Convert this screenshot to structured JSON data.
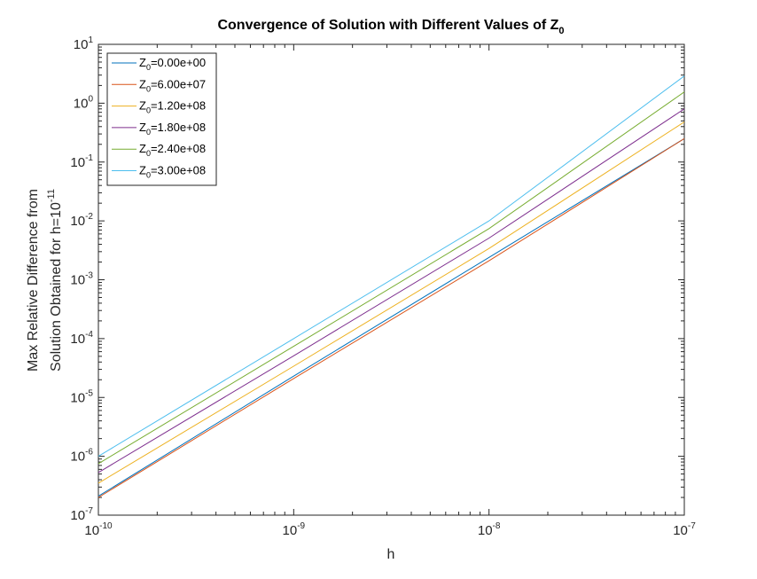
{
  "chart_data": {
    "type": "line",
    "title": {
      "main": "Convergence of Solution with Different Values of Z",
      "sub": "0"
    },
    "xlabel": "h",
    "ylabel": {
      "line1": "Max Relative Difference from",
      "line2": "Solution Obtained for h=10",
      "line2_sup": "-11"
    },
    "xscale": "log",
    "yscale": "log",
    "xlim": [
      1e-10,
      1e-07
    ],
    "ylim": [
      1e-07,
      10
    ],
    "grid": false,
    "legend_position": "top-left",
    "x_ticks": [
      {
        "base": "10",
        "exp": "-10"
      },
      {
        "base": "10",
        "exp": "-9"
      },
      {
        "base": "10",
        "exp": "-8"
      },
      {
        "base": "10",
        "exp": "-7"
      }
    ],
    "y_ticks": [
      {
        "base": "10",
        "exp": "-7"
      },
      {
        "base": "10",
        "exp": "-6"
      },
      {
        "base": "10",
        "exp": "-5"
      },
      {
        "base": "10",
        "exp": "-4"
      },
      {
        "base": "10",
        "exp": "-3"
      },
      {
        "base": "10",
        "exp": "-2"
      },
      {
        "base": "10",
        "exp": "-1"
      },
      {
        "base": "10",
        "exp": "0"
      },
      {
        "base": "10",
        "exp": "1"
      }
    ],
    "x": [
      1e-10,
      1e-09,
      1e-08,
      1e-07
    ],
    "series": [
      {
        "name": "Z0=0.00e+00",
        "label_main": "Z",
        "label_sub": "0",
        "label_rest": "=0.00e+00",
        "color": "#0072BD",
        "values": [
          2.1e-07,
          2.3e-05,
          0.0024,
          0.25
        ]
      },
      {
        "name": "Z0=6.00e+07",
        "label_main": "Z",
        "label_sub": "0",
        "label_rest": "=6.00e+07",
        "color": "#D95319",
        "values": [
          2e-07,
          2.1e-05,
          0.0021,
          0.25
        ]
      },
      {
        "name": "Z0=1.20e+08",
        "label_main": "Z",
        "label_sub": "0",
        "label_rest": "=1.20e+08",
        "color": "#EDB120",
        "values": [
          3.5e-07,
          3.4e-05,
          0.0034,
          0.48
        ]
      },
      {
        "name": "Z0=1.80e+08",
        "label_main": "Z",
        "label_sub": "0",
        "label_rest": "=1.80e+08",
        "color": "#7E2F8E",
        "values": [
          5.3e-07,
          5.1e-05,
          0.0051,
          0.8
        ]
      },
      {
        "name": "Z0=2.40e+08",
        "label_main": "Z",
        "label_sub": "0",
        "label_rest": "=2.40e+08",
        "color": "#77AC30",
        "values": [
          7.5e-07,
          7.4e-05,
          0.0074,
          1.55
        ]
      },
      {
        "name": "Z0=3.00e+08",
        "label_main": "Z",
        "label_sub": "0",
        "label_rest": "=3.00e+08",
        "color": "#4DBEEE",
        "values": [
          1e-06,
          0.0001,
          0.01,
          2.9
        ]
      }
    ]
  }
}
